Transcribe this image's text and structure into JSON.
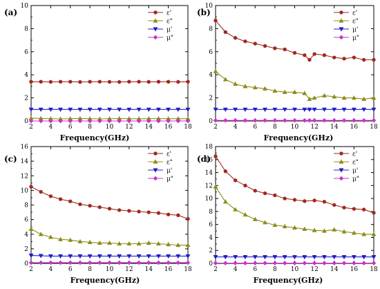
{
  "figure": {
    "panel_labels": [
      "(a)",
      "(b)",
      "(c)",
      "(d)"
    ]
  },
  "chart_data": [
    {
      "type": "line",
      "panel": "(a)",
      "xlabel": "Frequency(GHz)",
      "ylabel": "",
      "xlim": [
        2,
        18
      ],
      "ylim": [
        0,
        10
      ],
      "xticks": [
        2,
        4,
        6,
        8,
        10,
        12,
        14,
        16,
        18
      ],
      "yticks": [
        0,
        2,
        4,
        6,
        8,
        10
      ],
      "legend_position": "top-right",
      "x": [
        2,
        3,
        4,
        5,
        6,
        7,
        8,
        9,
        10,
        11,
        12,
        13,
        14,
        15,
        16,
        17,
        18
      ],
      "series": [
        {
          "name": "ε'",
          "color": "#a0281e",
          "marker": "circle",
          "values": [
            3.4,
            3.4,
            3.39,
            3.4,
            3.4,
            3.38,
            3.4,
            3.4,
            3.39,
            3.38,
            3.4,
            3.4,
            3.39,
            3.4,
            3.4,
            3.39,
            3.4
          ]
        },
        {
          "name": "ε\"",
          "color": "#8c8c1a",
          "marker": "triangle-up",
          "values": [
            0.25,
            0.22,
            0.2,
            0.18,
            0.2,
            0.22,
            0.2,
            0.18,
            0.2,
            0.21,
            0.2,
            0.19,
            0.2,
            0.21,
            0.2,
            0.2,
            0.2
          ]
        },
        {
          "name": "μ'",
          "color": "#1f1fc8",
          "marker": "triangle-down",
          "values": [
            1.0,
            1.0,
            1.0,
            1.0,
            1.0,
            1.0,
            1.0,
            1.0,
            1.0,
            1.0,
            1.0,
            1.0,
            1.0,
            1.0,
            1.0,
            1.0,
            1.0
          ]
        },
        {
          "name": "μ\"",
          "color": "#c832c8",
          "marker": "diamond",
          "values": [
            0.0,
            0.0,
            0.0,
            0.0,
            0.0,
            0.0,
            0.0,
            0.0,
            0.0,
            0.0,
            0.0,
            0.0,
            0.0,
            0.0,
            0.0,
            0.0,
            0.0
          ]
        }
      ]
    },
    {
      "type": "line",
      "panel": "(b)",
      "xlabel": "Frequency(GHz)",
      "ylabel": "",
      "xlim": [
        2,
        18
      ],
      "ylim": [
        0,
        10
      ],
      "xticks": [
        2,
        4,
        6,
        8,
        10,
        12,
        14,
        16,
        18
      ],
      "yticks": [
        0,
        2,
        4,
        6,
        8,
        10
      ],
      "legend_position": "top-right",
      "x": [
        2,
        3,
        4,
        5,
        6,
        7,
        8,
        9,
        10,
        11,
        11.5,
        12,
        13,
        14,
        15,
        16,
        17,
        18
      ],
      "series": [
        {
          "name": "ε'",
          "color": "#a0281e",
          "marker": "circle",
          "values": [
            8.7,
            7.7,
            7.2,
            6.9,
            6.7,
            6.5,
            6.3,
            6.2,
            5.9,
            5.7,
            5.3,
            5.8,
            5.7,
            5.5,
            5.4,
            5.5,
            5.3,
            5.3
          ]
        },
        {
          "name": "ε\"",
          "color": "#8c8c1a",
          "marker": "triangle-up",
          "values": [
            4.3,
            3.6,
            3.2,
            3.0,
            2.9,
            2.8,
            2.6,
            2.5,
            2.5,
            2.4,
            1.9,
            2.0,
            2.2,
            2.1,
            2.0,
            2.0,
            1.9,
            2.0
          ]
        },
        {
          "name": "μ'",
          "color": "#1f1fc8",
          "marker": "triangle-down",
          "values": [
            1.0,
            1.0,
            1.0,
            1.0,
            1.0,
            1.0,
            1.0,
            1.0,
            1.0,
            1.0,
            1.0,
            1.0,
            1.0,
            1.0,
            1.0,
            1.0,
            1.0,
            1.0
          ]
        },
        {
          "name": "μ\"",
          "color": "#c832c8",
          "marker": "diamond",
          "values": [
            0.05,
            0.05,
            0.05,
            0.05,
            0.05,
            0.05,
            0.05,
            0.05,
            0.05,
            0.05,
            0.05,
            0.05,
            0.05,
            0.05,
            0.05,
            0.05,
            0.05,
            0.05
          ]
        }
      ]
    },
    {
      "type": "line",
      "panel": "(c)",
      "xlabel": "Frequency(GHz)",
      "ylabel": "",
      "xlim": [
        2,
        18
      ],
      "ylim": [
        0,
        16
      ],
      "xticks": [
        2,
        4,
        6,
        8,
        10,
        12,
        14,
        16,
        18
      ],
      "yticks": [
        0,
        2,
        4,
        6,
        8,
        10,
        12,
        14,
        16
      ],
      "legend_position": "top-right",
      "x": [
        2,
        3,
        4,
        5,
        6,
        7,
        8,
        9,
        10,
        11,
        12,
        13,
        14,
        15,
        16,
        17,
        18
      ],
      "series": [
        {
          "name": "ε'",
          "color": "#a0281e",
          "marker": "circle",
          "values": [
            10.5,
            9.8,
            9.2,
            8.8,
            8.5,
            8.1,
            7.9,
            7.7,
            7.5,
            7.3,
            7.2,
            7.1,
            7.0,
            6.9,
            6.7,
            6.6,
            6.1
          ]
        },
        {
          "name": "ε\"",
          "color": "#8c8c1a",
          "marker": "triangle-up",
          "values": [
            4.7,
            4.0,
            3.6,
            3.3,
            3.2,
            3.0,
            2.9,
            2.8,
            2.8,
            2.7,
            2.7,
            2.7,
            2.8,
            2.7,
            2.6,
            2.5,
            2.5
          ]
        },
        {
          "name": "μ'",
          "color": "#1f1fc8",
          "marker": "triangle-down",
          "values": [
            1.1,
            1.05,
            1.0,
            1.0,
            1.0,
            1.0,
            1.0,
            1.0,
            1.0,
            1.0,
            1.0,
            1.0,
            1.0,
            1.0,
            1.0,
            1.0,
            1.0
          ]
        },
        {
          "name": "μ\"",
          "color": "#c832c8",
          "marker": "diamond",
          "values": [
            0.1,
            0.1,
            0.1,
            0.1,
            0.1,
            0.1,
            0.1,
            0.1,
            0.1,
            0.1,
            0.1,
            0.1,
            0.1,
            0.1,
            0.1,
            0.1,
            0.1
          ]
        }
      ]
    },
    {
      "type": "line",
      "panel": "(d)",
      "xlabel": "Frequency(GHz)",
      "ylabel": "",
      "xlim": [
        2,
        18
      ],
      "ylim": [
        0,
        18
      ],
      "xticks": [
        2,
        4,
        6,
        8,
        10,
        12,
        14,
        16,
        18
      ],
      "yticks": [
        0,
        2,
        4,
        6,
        8,
        10,
        12,
        14,
        16,
        18
      ],
      "legend_position": "top-right",
      "x": [
        2,
        3,
        4,
        5,
        6,
        7,
        8,
        9,
        10,
        11,
        12,
        13,
        14,
        15,
        16,
        17,
        18
      ],
      "series": [
        {
          "name": "ε'",
          "color": "#a0281e",
          "marker": "circle",
          "values": [
            16.5,
            14.2,
            12.8,
            12.0,
            11.2,
            10.8,
            10.5,
            10.0,
            9.8,
            9.6,
            9.7,
            9.5,
            9.0,
            8.6,
            8.4,
            8.3,
            7.8
          ]
        },
        {
          "name": "ε\"",
          "color": "#8c8c1a",
          "marker": "triangle-up",
          "values": [
            11.8,
            9.5,
            8.3,
            7.5,
            6.8,
            6.3,
            5.9,
            5.7,
            5.5,
            5.3,
            5.1,
            5.0,
            5.2,
            4.9,
            4.7,
            4.5,
            4.5
          ]
        },
        {
          "name": "μ'",
          "color": "#1f1fc8",
          "marker": "triangle-down",
          "values": [
            1.0,
            1.0,
            1.0,
            1.0,
            1.0,
            1.0,
            1.0,
            1.0,
            1.0,
            1.0,
            1.0,
            1.0,
            1.0,
            1.0,
            1.0,
            1.0,
            1.0
          ]
        },
        {
          "name": "μ\"",
          "color": "#c832c8",
          "marker": "diamond",
          "values": [
            0.05,
            0.05,
            0.05,
            0.05,
            0.05,
            0.05,
            0.05,
            0.05,
            0.05,
            0.05,
            0.05,
            0.05,
            0.05,
            0.05,
            0.05,
            0.05,
            0.05
          ]
        }
      ]
    }
  ]
}
